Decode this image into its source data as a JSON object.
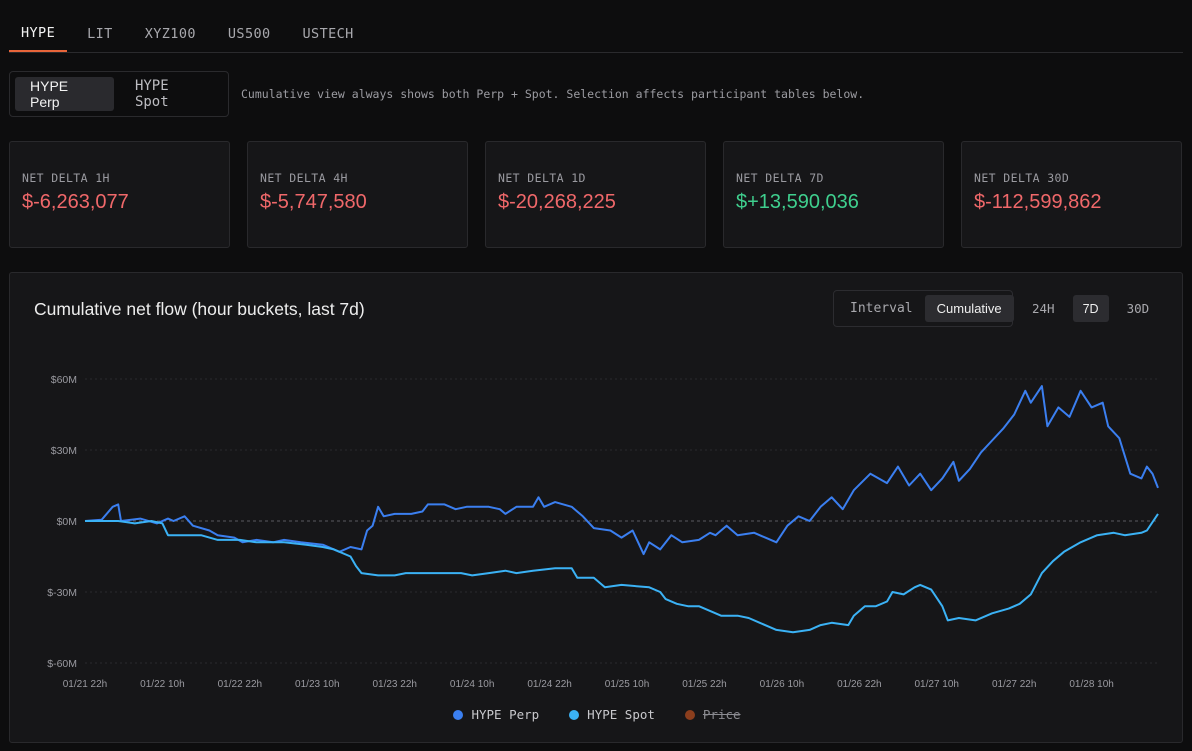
{
  "tabs": [
    {
      "label": "HYPE",
      "active": true
    },
    {
      "label": "LIT"
    },
    {
      "label": "XYZ100"
    },
    {
      "label": "US500"
    },
    {
      "label": "USTECH"
    }
  ],
  "market_toggle": {
    "perp": "HYPE Perp",
    "spot": "HYPE Spot"
  },
  "note": "Cumulative view always shows both Perp + Spot. Selection affects participant tables below.",
  "cards": [
    {
      "label": "NET DELTA 1H",
      "value": "$-6,263,077",
      "sign": "neg"
    },
    {
      "label": "NET DELTA 4H",
      "value": "$-5,747,580",
      "sign": "neg"
    },
    {
      "label": "NET DELTA 1D",
      "value": "$-20,268,225",
      "sign": "neg"
    },
    {
      "label": "NET DELTA 7D",
      "value": "$+13,590,036",
      "sign": "pos"
    },
    {
      "label": "NET DELTA 30D",
      "value": "$-112,599,862",
      "sign": "neg"
    }
  ],
  "chart_panel": {
    "title": "Cumulative net flow (hour buckets, last 7d)",
    "modes": {
      "interval": "Interval",
      "cumulative": "Cumulative"
    },
    "ranges": {
      "h24": "24H",
      "d7": "7D",
      "d30": "30D"
    }
  },
  "legend": {
    "perp": "HYPE Perp",
    "spot": "HYPE Spot",
    "price": "Price"
  },
  "colors": {
    "accent": "#e8653a",
    "negative": "#f0686a",
    "positive": "#3fcf8e",
    "perp": "#3b7ff0",
    "spot": "#3bb2f5",
    "price": "#8b3e1d"
  },
  "chart_data": {
    "type": "line",
    "x_ticks": [
      "01/21 22h",
      "01/22 10h",
      "01/22 22h",
      "01/23 10h",
      "01/23 22h",
      "01/24 10h",
      "01/24 22h",
      "01/25 10h",
      "01/25 22h",
      "01/26 10h",
      "01/26 22h",
      "01/27 10h",
      "01/27 22h",
      "01/28 10h"
    ],
    "y_ticks": [
      "$60M",
      "$30M",
      "$0M",
      "$-30M",
      "$-60M"
    ],
    "ylim": [
      -60,
      60
    ],
    "y_unit": "$M",
    "grid": "horizontal-dotted",
    "legend_position": "bottom-center",
    "series": [
      {
        "name": "HYPE Perp",
        "color": "#3b7ff0",
        "points": [
          [
            0,
            0
          ],
          [
            6,
            0.5
          ],
          [
            10,
            6
          ],
          [
            12,
            7
          ],
          [
            13,
            0
          ],
          [
            20,
            1
          ],
          [
            26,
            -1
          ],
          [
            30,
            1
          ],
          [
            32,
            0
          ],
          [
            36,
            2
          ],
          [
            39,
            -2
          ],
          [
            45,
            -4
          ],
          [
            48,
            -6
          ],
          [
            54,
            -7
          ],
          [
            57,
            -9
          ],
          [
            62,
            -8
          ],
          [
            68,
            -9
          ],
          [
            72,
            -8
          ],
          [
            78,
            -9
          ],
          [
            86,
            -10
          ],
          [
            92,
            -13
          ],
          [
            96,
            -11
          ],
          [
            100,
            -12
          ],
          [
            102,
            -4
          ],
          [
            104,
            -2
          ],
          [
            106,
            6
          ],
          [
            108,
            2
          ],
          [
            112,
            3
          ],
          [
            118,
            3
          ],
          [
            122,
            4
          ],
          [
            124,
            7
          ],
          [
            130,
            7
          ],
          [
            134,
            5
          ],
          [
            138,
            6
          ],
          [
            146,
            6
          ],
          [
            150,
            5
          ],
          [
            152,
            3
          ],
          [
            156,
            6
          ],
          [
            162,
            6
          ],
          [
            164,
            10
          ],
          [
            166,
            6
          ],
          [
            170,
            8
          ],
          [
            176,
            6
          ],
          [
            180,
            2
          ],
          [
            184,
            -3
          ],
          [
            190,
            -4
          ],
          [
            194,
            -7
          ],
          [
            198,
            -4
          ],
          [
            202,
            -14
          ],
          [
            204,
            -9
          ],
          [
            208,
            -12
          ],
          [
            212,
            -6
          ],
          [
            216,
            -9
          ],
          [
            222,
            -8
          ],
          [
            226,
            -5
          ],
          [
            228,
            -6
          ],
          [
            232,
            -2
          ],
          [
            236,
            -6
          ],
          [
            242,
            -5
          ],
          [
            246,
            -7
          ],
          [
            250,
            -9
          ],
          [
            254,
            -2
          ],
          [
            258,
            2
          ],
          [
            262,
            0
          ],
          [
            266,
            6
          ],
          [
            270,
            10
          ],
          [
            274,
            5
          ],
          [
            278,
            13
          ],
          [
            284,
            20
          ],
          [
            290,
            16
          ],
          [
            294,
            23
          ],
          [
            298,
            15
          ],
          [
            302,
            20
          ],
          [
            306,
            13
          ],
          [
            310,
            18
          ],
          [
            314,
            25
          ],
          [
            316,
            17
          ],
          [
            320,
            22
          ],
          [
            324,
            29
          ],
          [
            328,
            34
          ],
          [
            332,
            39
          ],
          [
            336,
            45
          ],
          [
            340,
            55
          ],
          [
            342,
            50
          ],
          [
            346,
            57
          ],
          [
            348,
            40
          ],
          [
            352,
            48
          ],
          [
            356,
            44
          ],
          [
            360,
            55
          ],
          [
            364,
            48
          ],
          [
            368,
            50
          ],
          [
            370,
            40
          ],
          [
            374,
            35
          ],
          [
            378,
            20
          ],
          [
            382,
            18
          ],
          [
            384,
            23
          ],
          [
            386,
            20
          ],
          [
            388,
            14
          ]
        ]
      },
      {
        "name": "HYPE Spot",
        "color": "#3bb2f5",
        "points": [
          [
            0,
            0
          ],
          [
            6,
            0
          ],
          [
            12,
            0
          ],
          [
            18,
            -1
          ],
          [
            24,
            0
          ],
          [
            28,
            -1
          ],
          [
            30,
            -6
          ],
          [
            36,
            -6
          ],
          [
            42,
            -6
          ],
          [
            48,
            -8
          ],
          [
            56,
            -8
          ],
          [
            62,
            -9
          ],
          [
            72,
            -9
          ],
          [
            80,
            -10
          ],
          [
            86,
            -11
          ],
          [
            90,
            -12
          ],
          [
            96,
            -15
          ],
          [
            98,
            -19
          ],
          [
            100,
            -22
          ],
          [
            106,
            -23
          ],
          [
            112,
            -23
          ],
          [
            116,
            -22
          ],
          [
            124,
            -22
          ],
          [
            130,
            -22
          ],
          [
            136,
            -22
          ],
          [
            140,
            -23
          ],
          [
            146,
            -22
          ],
          [
            152,
            -21
          ],
          [
            156,
            -22
          ],
          [
            162,
            -21
          ],
          [
            170,
            -20
          ],
          [
            176,
            -20
          ],
          [
            178,
            -24
          ],
          [
            184,
            -24
          ],
          [
            188,
            -28
          ],
          [
            194,
            -27
          ],
          [
            204,
            -28
          ],
          [
            208,
            -30
          ],
          [
            210,
            -33
          ],
          [
            214,
            -35
          ],
          [
            218,
            -36
          ],
          [
            222,
            -36
          ],
          [
            226,
            -38
          ],
          [
            230,
            -40
          ],
          [
            236,
            -40
          ],
          [
            240,
            -41
          ],
          [
            244,
            -43
          ],
          [
            250,
            -46
          ],
          [
            256,
            -47
          ],
          [
            262,
            -46
          ],
          [
            266,
            -44
          ],
          [
            270,
            -43
          ],
          [
            276,
            -44
          ],
          [
            278,
            -40
          ],
          [
            282,
            -36
          ],
          [
            286,
            -36
          ],
          [
            290,
            -34
          ],
          [
            292,
            -30
          ],
          [
            296,
            -31
          ],
          [
            300,
            -28
          ],
          [
            302,
            -27
          ],
          [
            306,
            -29
          ],
          [
            310,
            -36
          ],
          [
            312,
            -42
          ],
          [
            316,
            -41
          ],
          [
            322,
            -42
          ],
          [
            328,
            -39
          ],
          [
            334,
            -37
          ],
          [
            338,
            -35
          ],
          [
            342,
            -31
          ],
          [
            346,
            -22
          ],
          [
            350,
            -17
          ],
          [
            354,
            -13
          ],
          [
            360,
            -9
          ],
          [
            366,
            -6
          ],
          [
            372,
            -5
          ],
          [
            376,
            -6
          ],
          [
            382,
            -5
          ],
          [
            384,
            -4
          ],
          [
            388,
            3
          ]
        ]
      },
      {
        "name": "Price",
        "color": "#8b3e1d",
        "hidden": true,
        "points": []
      }
    ]
  }
}
